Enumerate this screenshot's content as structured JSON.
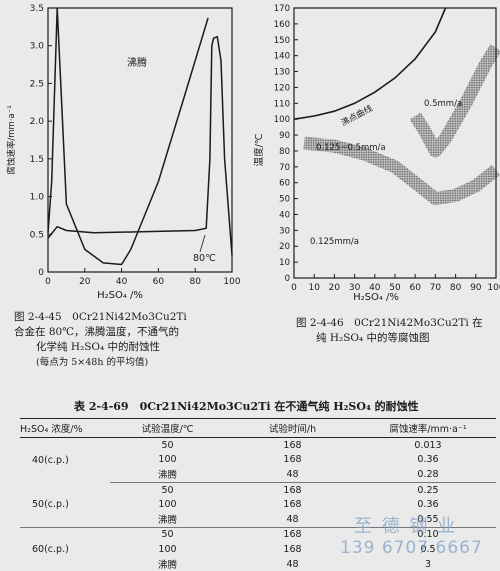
{
  "chart_data": [
    {
      "type": "line",
      "xlabel": "H2SO4 /%",
      "ylabel": "腐蚀速率/mm·a⁻¹",
      "xlim": [
        0,
        100
      ],
      "ylim": [
        0,
        3.5
      ],
      "x_ticks": [
        "0",
        "20",
        "40",
        "60",
        "80",
        "100"
      ],
      "y_ticks": [
        "0",
        "0.5",
        "1.0",
        "1.5",
        "2.0",
        "2.5",
        "3.0",
        "3.5"
      ],
      "series": [
        {
          "name": "沸腾",
          "points": [
            [
              0,
              0.52
            ],
            [
              2,
              1.2
            ],
            [
              5,
              3.5
            ],
            [
              10,
              0.9
            ],
            [
              20,
              0.3
            ],
            [
              30,
              0.12
            ],
            [
              40,
              0.1
            ],
            [
              45,
              0.3
            ],
            [
              60,
              1.2
            ],
            [
              75,
              2.4
            ],
            [
              87,
              3.37
            ]
          ]
        },
        {
          "name": "80℃",
          "points": [
            [
              0,
              0.45
            ],
            [
              5,
              0.6
            ],
            [
              10,
              0.55
            ],
            [
              25,
              0.52
            ],
            [
              45,
              0.53
            ],
            [
              80,
              0.55
            ],
            [
              86,
              0.58
            ],
            [
              88,
              1.5
            ],
            [
              89,
              3.0
            ],
            [
              90,
              3.1
            ],
            [
              92,
              3.12
            ],
            [
              94,
              2.8
            ],
            [
              96,
              1.5
            ],
            [
              100,
              0.22
            ]
          ]
        }
      ]
    },
    {
      "type": "line",
      "xlabel": "H2SO4 /%",
      "ylabel": "温度/℃",
      "xlim": [
        0,
        100
      ],
      "ylim": [
        0,
        170
      ],
      "x_ticks": [
        "0",
        "10",
        "20",
        "30",
        "40",
        "50",
        "60",
        "70",
        "80",
        "90",
        "100"
      ],
      "y_ticks": [
        "0",
        "10",
        "20",
        "30",
        "40",
        "50",
        "60",
        "70",
        "80",
        "90",
        "100",
        "110",
        "120",
        "130",
        "140",
        "150",
        "160",
        "170"
      ],
      "series": [
        {
          "name": "沸点曲线",
          "points": [
            [
              0,
              100
            ],
            [
              10,
              102
            ],
            [
              20,
              105
            ],
            [
              30,
              110
            ],
            [
              40,
              117
            ],
            [
              50,
              126
            ],
            [
              60,
              138
            ],
            [
              70,
              155
            ],
            [
              75,
              170
            ]
          ]
        }
      ],
      "bands": [
        {
          "name": "0.5mm/a",
          "points": [
            [
              60,
              102
            ],
            [
              65,
              92
            ],
            [
              70,
              80
            ],
            [
              75,
              88
            ],
            [
              85,
              110
            ],
            [
              95,
              135
            ],
            [
              100,
              145
            ]
          ]
        },
        {
          "name": "0.125~0.5mm/a",
          "points": [
            [
              5,
              85
            ],
            [
              20,
              83
            ],
            [
              35,
              78
            ],
            [
              50,
              70
            ],
            [
              60,
              60
            ],
            [
              70,
              50
            ],
            [
              80,
              52
            ],
            [
              90,
              58
            ],
            [
              100,
              68
            ]
          ]
        }
      ],
      "annotations": [
        "沸点曲线",
        "0.5mm/a",
        "0.125~0.5mm/a",
        "0.125mm/a"
      ]
    }
  ],
  "fig1": {
    "label_boil": "沸腾",
    "label_80": "80℃",
    "ylabel": "腐蚀速率/mm·a⁻¹",
    "xlabel": "H₂SO₄ /%",
    "caption_line1": "图 2-4-45　0Cr21Ni42Mo3Cu2Ti",
    "caption_line2": "合金在 80℃，沸腾温度，不通气的",
    "caption_line3": "化学纯 H₂SO₄ 中的耐蚀性",
    "caption_line4": "(每点为 5×48h 的平均值)"
  },
  "fig2": {
    "ylabel": "温度/℃",
    "xlabel": "H₂SO₄ /%",
    "label_boil_curve": "沸点曲线",
    "label_05": "0.5mm/a",
    "label_0125_05": "0.125~0.5mm/a",
    "label_0125": "0.125mm/a",
    "caption_line1": "图 2-4-46　0Cr21Ni42Mo3Cu2Ti 在",
    "caption_line2": "纯 H₂SO₄ 中的等腐蚀图"
  },
  "table": {
    "title": "表 2-4-69　0Cr21Ni42Mo3Cu2Ti 在不通气纯 H₂SO₄ 的耐蚀性",
    "headers": [
      "H₂SO₄ 浓度/%",
      "试验温度/℃",
      "试验时间/h",
      "腐蚀速率/mm·a⁻¹"
    ],
    "rows": [
      {
        "conc": "40(c.p.)",
        "temp": "50",
        "time": "168",
        "rate": "0.013"
      },
      {
        "conc": "",
        "temp": "100",
        "time": "168",
        "rate": "0.36"
      },
      {
        "conc": "",
        "temp": "沸腾",
        "time": "48",
        "rate": "0.28"
      },
      {
        "conc": "50(c.p.)",
        "temp": "50",
        "time": "168",
        "rate": "0.25"
      },
      {
        "conc": "",
        "temp": "100",
        "time": "168",
        "rate": "0.36"
      },
      {
        "conc": "",
        "temp": "沸腾",
        "time": "48",
        "rate": "0.55"
      },
      {
        "conc": "60(c.p.)",
        "temp": "50",
        "time": "168",
        "rate": "0.10"
      },
      {
        "conc": "",
        "temp": "100",
        "time": "168",
        "rate": "0.5"
      },
      {
        "conc": "",
        "temp": "沸腾",
        "time": "48",
        "rate": "3"
      }
    ]
  },
  "watermark": {
    "line1": "至  德  钢  业",
    "line2": "139  6707  6667"
  },
  "colors": {
    "page": "#ebeaea",
    "ink": "#1b1b1b",
    "band": "#8a8a8a",
    "watermark": "#7fa2c8"
  }
}
